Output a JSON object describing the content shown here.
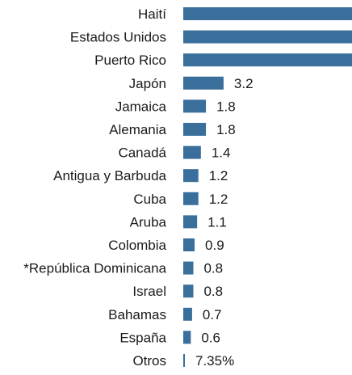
{
  "chart_data": {
    "type": "bar",
    "orientation": "horizontal",
    "title": "",
    "xlabel": "",
    "ylabel": "",
    "bar_color": "#3a6f9c",
    "grid": false,
    "categories": [
      "Haití",
      "Estados Unidos",
      "Puerto Rico",
      "Japón",
      "Jamaica",
      "Alemania",
      "Canadá",
      "Antigua y Barbuda",
      "Cuba",
      "Aruba",
      "Colombia",
      "*República Dominicana",
      "Israel",
      "Bahamas",
      "España",
      "Otros"
    ],
    "values": [
      null,
      null,
      null,
      3.2,
      1.8,
      1.8,
      1.4,
      1.2,
      1.2,
      1.1,
      0.9,
      0.8,
      0.8,
      0.7,
      0.6,
      7.35
    ],
    "value_labels": [
      "",
      "",
      "",
      "3.2",
      "1.8",
      "1.8",
      "1.4",
      "1.2",
      "1.2",
      "1.1",
      "0.9",
      "0.8",
      "0.8",
      "0.7",
      "0.6",
      "7.35%"
    ],
    "truncated_bars": [
      "Haití",
      "Estados Unidos",
      "Puerto Rico"
    ]
  }
}
